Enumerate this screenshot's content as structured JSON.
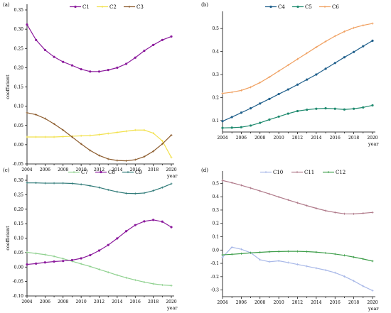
{
  "chart_data": [
    {
      "type": "line",
      "panel_label": "(a)",
      "xlabel": "year",
      "ylabel": "coefficient",
      "xlim": [
        2004,
        2020
      ],
      "ylim": [
        -0.05,
        0.35
      ],
      "x_ticks": [
        2004,
        2006,
        2008,
        2010,
        2012,
        2014,
        2016,
        2018,
        2020
      ],
      "y_ticks": [
        -0.05,
        0.0,
        0.05,
        0.1,
        0.15,
        0.2,
        0.25,
        0.3,
        0.35
      ],
      "y_tick_labels": [
        "-0.05",
        "0.00",
        "0.05",
        "0.10",
        "0.15",
        "0.20",
        "0.25",
        "0.30",
        "0.35"
      ],
      "x": [
        2004,
        2005,
        2006,
        2007,
        2008,
        2009,
        2010,
        2011,
        2012,
        2013,
        2014,
        2015,
        2016,
        2017,
        2018,
        2019,
        2020
      ],
      "series": [
        {
          "name": "C1",
          "color": "#8b1a9c",
          "marker": "dot",
          "values": [
            0.312,
            0.272,
            0.246,
            0.228,
            0.215,
            0.206,
            0.196,
            0.19,
            0.19,
            0.194,
            0.2,
            0.21,
            0.226,
            0.244,
            0.259,
            0.272,
            0.281
          ]
        },
        {
          "name": "C2",
          "color": "#f2e14c",
          "marker": "plus",
          "values": [
            0.02,
            0.02,
            0.02,
            0.02,
            0.021,
            0.022,
            0.023,
            0.024,
            0.026,
            0.029,
            0.032,
            0.035,
            0.038,
            0.038,
            0.03,
            0.01,
            -0.033
          ]
        },
        {
          "name": "C3",
          "color": "#8b5a2b",
          "marker": "plus",
          "values": [
            0.083,
            0.078,
            0.068,
            0.054,
            0.038,
            0.02,
            0.002,
            -0.015,
            -0.028,
            -0.037,
            -0.041,
            -0.042,
            -0.039,
            -0.031,
            -0.017,
            0.002,
            0.025
          ]
        }
      ]
    },
    {
      "type": "line",
      "panel_label": "(b)",
      "xlabel": "year",
      "ylabel": "",
      "xlim": [
        2004,
        2020
      ],
      "ylim": [
        0.05,
        0.55
      ],
      "x_ticks": [
        2004,
        2006,
        2008,
        2010,
        2012,
        2014,
        2016,
        2018,
        2020
      ],
      "y_ticks": [
        0.1,
        0.2,
        0.3,
        0.4,
        0.5
      ],
      "y_tick_labels": [
        "0.1",
        "0.2",
        "0.3",
        "0.4",
        "0.5"
      ],
      "x": [
        2004,
        2005,
        2006,
        2007,
        2008,
        2009,
        2010,
        2011,
        2012,
        2013,
        2014,
        2015,
        2016,
        2017,
        2018,
        2019,
        2020
      ],
      "series": [
        {
          "name": "C4",
          "color": "#1f5f8b",
          "marker": "dot",
          "values": [
            0.097,
            0.115,
            0.134,
            0.153,
            0.174,
            0.194,
            0.215,
            0.235,
            0.256,
            0.278,
            0.3,
            0.325,
            0.35,
            0.375,
            0.398,
            0.423,
            0.447
          ]
        },
        {
          "name": "C5",
          "color": "#1e8a6e",
          "marker": "dot",
          "values": [
            0.068,
            0.069,
            0.071,
            0.078,
            0.09,
            0.104,
            0.117,
            0.13,
            0.141,
            0.147,
            0.151,
            0.153,
            0.151,
            0.148,
            0.151,
            0.157,
            0.166
          ]
        },
        {
          "name": "C6",
          "color": "#f0a060",
          "marker": "plus",
          "values": [
            0.218,
            0.223,
            0.231,
            0.245,
            0.265,
            0.289,
            0.315,
            0.341,
            0.367,
            0.393,
            0.419,
            0.444,
            0.467,
            0.487,
            0.503,
            0.514,
            0.522
          ]
        }
      ]
    },
    {
      "type": "line",
      "panel_label": "(c)",
      "xlabel": "year",
      "ylabel": "coefficient",
      "xlim": [
        2004,
        2020
      ],
      "ylim": [
        -0.1,
        0.3
      ],
      "x_ticks": [
        2004,
        2006,
        2008,
        2010,
        2012,
        2014,
        2016,
        2018,
        2020
      ],
      "y_ticks": [
        -0.1,
        -0.05,
        0.0,
        0.05,
        0.1,
        0.15,
        0.2,
        0.25,
        0.3
      ],
      "y_tick_labels": [
        "-0.10",
        "-0.05",
        "0.00",
        "0.05",
        "0.10",
        "0.15",
        "0.20",
        "0.25",
        "0.30"
      ],
      "x": [
        2004,
        2005,
        2006,
        2007,
        2008,
        2009,
        2010,
        2011,
        2012,
        2013,
        2014,
        2015,
        2016,
        2017,
        2018,
        2019,
        2020
      ],
      "series": [
        {
          "name": "C7",
          "color": "#8fd18f",
          "marker": "plus",
          "values": [
            0.051,
            0.047,
            0.043,
            0.037,
            0.029,
            0.02,
            0.011,
            0.002,
            -0.008,
            -0.018,
            -0.028,
            -0.037,
            -0.045,
            -0.052,
            -0.058,
            -0.062,
            -0.064
          ]
        },
        {
          "name": "C8",
          "color": "#8b1a9c",
          "marker": "dot",
          "values": [
            0.009,
            0.012,
            0.016,
            0.019,
            0.021,
            0.024,
            0.03,
            0.041,
            0.057,
            0.076,
            0.099,
            0.124,
            0.145,
            0.158,
            0.163,
            0.157,
            0.138
          ]
        },
        {
          "name": "C9",
          "color": "#2f7a78",
          "marker": "plus",
          "values": [
            0.291,
            0.291,
            0.29,
            0.29,
            0.29,
            0.289,
            0.286,
            0.281,
            0.275,
            0.267,
            0.26,
            0.255,
            0.254,
            0.256,
            0.264,
            0.275,
            0.288
          ]
        }
      ]
    },
    {
      "type": "line",
      "panel_label": "(d)",
      "xlabel": "year",
      "ylabel": "",
      "xlim": [
        2004,
        2020
      ],
      "ylim": [
        -0.35,
        0.55
      ],
      "x_ticks": [
        2004,
        2006,
        2008,
        2010,
        2012,
        2014,
        2016,
        2018,
        2020
      ],
      "y_ticks": [
        -0.3,
        -0.2,
        -0.1,
        0.0,
        0.1,
        0.2,
        0.3,
        0.4,
        0.5
      ],
      "y_tick_labels": [
        "-0.3",
        "-0.2",
        "-0.1",
        "0.0",
        "0.1",
        "0.2",
        "0.3",
        "0.4",
        "0.5"
      ],
      "x": [
        2004,
        2005,
        2006,
        2007,
        2008,
        2009,
        2010,
        2011,
        2012,
        2013,
        2014,
        2015,
        2016,
        2017,
        2018,
        2019,
        2020
      ],
      "series": [
        {
          "name": "C10",
          "color": "#a8b8e8",
          "marker": "plus",
          "values": [
            -0.054,
            0.021,
            0.006,
            -0.02,
            -0.073,
            -0.088,
            -0.081,
            -0.094,
            -0.108,
            -0.122,
            -0.136,
            -0.151,
            -0.17,
            -0.198,
            -0.232,
            -0.271,
            -0.304
          ]
        },
        {
          "name": "C11",
          "color": "#b07a8a",
          "marker": "plus",
          "values": [
            0.522,
            0.505,
            0.486,
            0.465,
            0.443,
            0.421,
            0.398,
            0.376,
            0.354,
            0.333,
            0.313,
            0.295,
            0.282,
            0.272,
            0.271,
            0.276,
            0.282
          ]
        },
        {
          "name": "C12",
          "color": "#3e9e4a",
          "marker": "plus",
          "values": [
            -0.036,
            -0.032,
            -0.027,
            -0.021,
            -0.017,
            -0.013,
            -0.011,
            -0.01,
            -0.01,
            -0.012,
            -0.016,
            -0.022,
            -0.03,
            -0.04,
            -0.053,
            -0.067,
            -0.083
          ]
        }
      ]
    }
  ]
}
